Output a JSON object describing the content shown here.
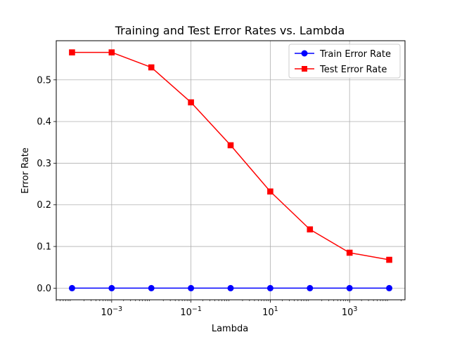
{
  "chart_data": {
    "type": "line",
    "title": "Training and Test Error Rates vs. Lambda",
    "xlabel": "Lambda",
    "ylabel": "Error Rate",
    "x_scale": "log",
    "grid": true,
    "legend_position": "top-right",
    "x": [
      0.0001,
      0.001,
      0.01,
      0.1,
      1,
      10,
      100,
      1000,
      10000
    ],
    "xlim": [
      4e-05,
      25000
    ],
    "ylim": [
      -0.028,
      0.594
    ],
    "yticks": [
      "0.0",
      "0.1",
      "0.2",
      "0.3",
      "0.4",
      "0.5"
    ],
    "ytick_values": [
      0.0,
      0.1,
      0.2,
      0.3,
      0.4,
      0.5
    ],
    "xticks": [
      {
        "value": 0.001,
        "base": "10",
        "exp": "−3"
      },
      {
        "value": 0.1,
        "base": "10",
        "exp": "−1"
      },
      {
        "value": 10,
        "base": "10",
        "exp": "1"
      },
      {
        "value": 1000,
        "base": "10",
        "exp": "3"
      }
    ],
    "series": [
      {
        "name": "Train Error Rate",
        "color": "#0000ff",
        "marker": "circle",
        "values": [
          0.0,
          0.0,
          0.0,
          0.0,
          0.0,
          0.0,
          0.0,
          0.0,
          0.0
        ]
      },
      {
        "name": "Test Error Rate",
        "color": "#ff0000",
        "marker": "square",
        "values": [
          0.566,
          0.566,
          0.53,
          0.446,
          0.343,
          0.232,
          0.141,
          0.085,
          0.068
        ]
      }
    ]
  }
}
